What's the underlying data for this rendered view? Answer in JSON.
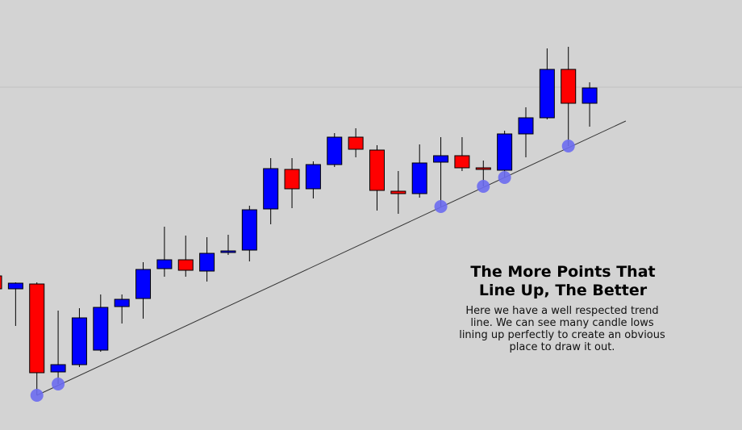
{
  "chart_data": {
    "type": "candlestick",
    "title": "The More Points That Line Up, The Better",
    "description": "Here we have a well respected trend line. We can see many candle lows lining up perfectly to create an obvious place to draw it out.",
    "open": [
      191,
      175,
      181,
      72,
      81,
      99,
      153,
      163,
      200,
      211,
      197,
      220,
      223,
      274,
      323,
      299,
      329,
      363,
      347,
      296,
      293,
      332,
      340,
      325,
      322,
      367,
      387,
      447,
      405
    ],
    "high": [
      193,
      183,
      183,
      148,
      151,
      168,
      168,
      208,
      252,
      241,
      239,
      242,
      278,
      337,
      337,
      333,
      368,
      374,
      353,
      321,
      354,
      363,
      363,
      334,
      371,
      400,
      473,
      475,
      431
    ],
    "low": [
      173,
      129,
      43,
      57,
      78,
      97,
      132,
      138,
      190,
      190,
      184,
      217,
      209,
      255,
      275,
      287,
      326,
      338,
      272,
      268,
      288,
      277,
      321,
      302,
      313,
      338,
      385,
      352,
      376
    ],
    "close": [
      175,
      182,
      71,
      81,
      139,
      152,
      162,
      199,
      211,
      198,
      219,
      222,
      273,
      324,
      299,
      329,
      363,
      348,
      297,
      293,
      331,
      340,
      325,
      323,
      367,
      387,
      447,
      405,
      424
    ],
    "up_color": "#0000ff",
    "down_color": "#ff0000",
    "touch_points": [
      2,
      3,
      21,
      23,
      24,
      27
    ],
    "touch_color": "#6b6bf0",
    "trendline": {
      "from": [
        2,
        43
      ],
      "to": [
        29.7,
        383
      ]
    },
    "hline": 425,
    "ylim": [
      0,
      533
    ]
  }
}
